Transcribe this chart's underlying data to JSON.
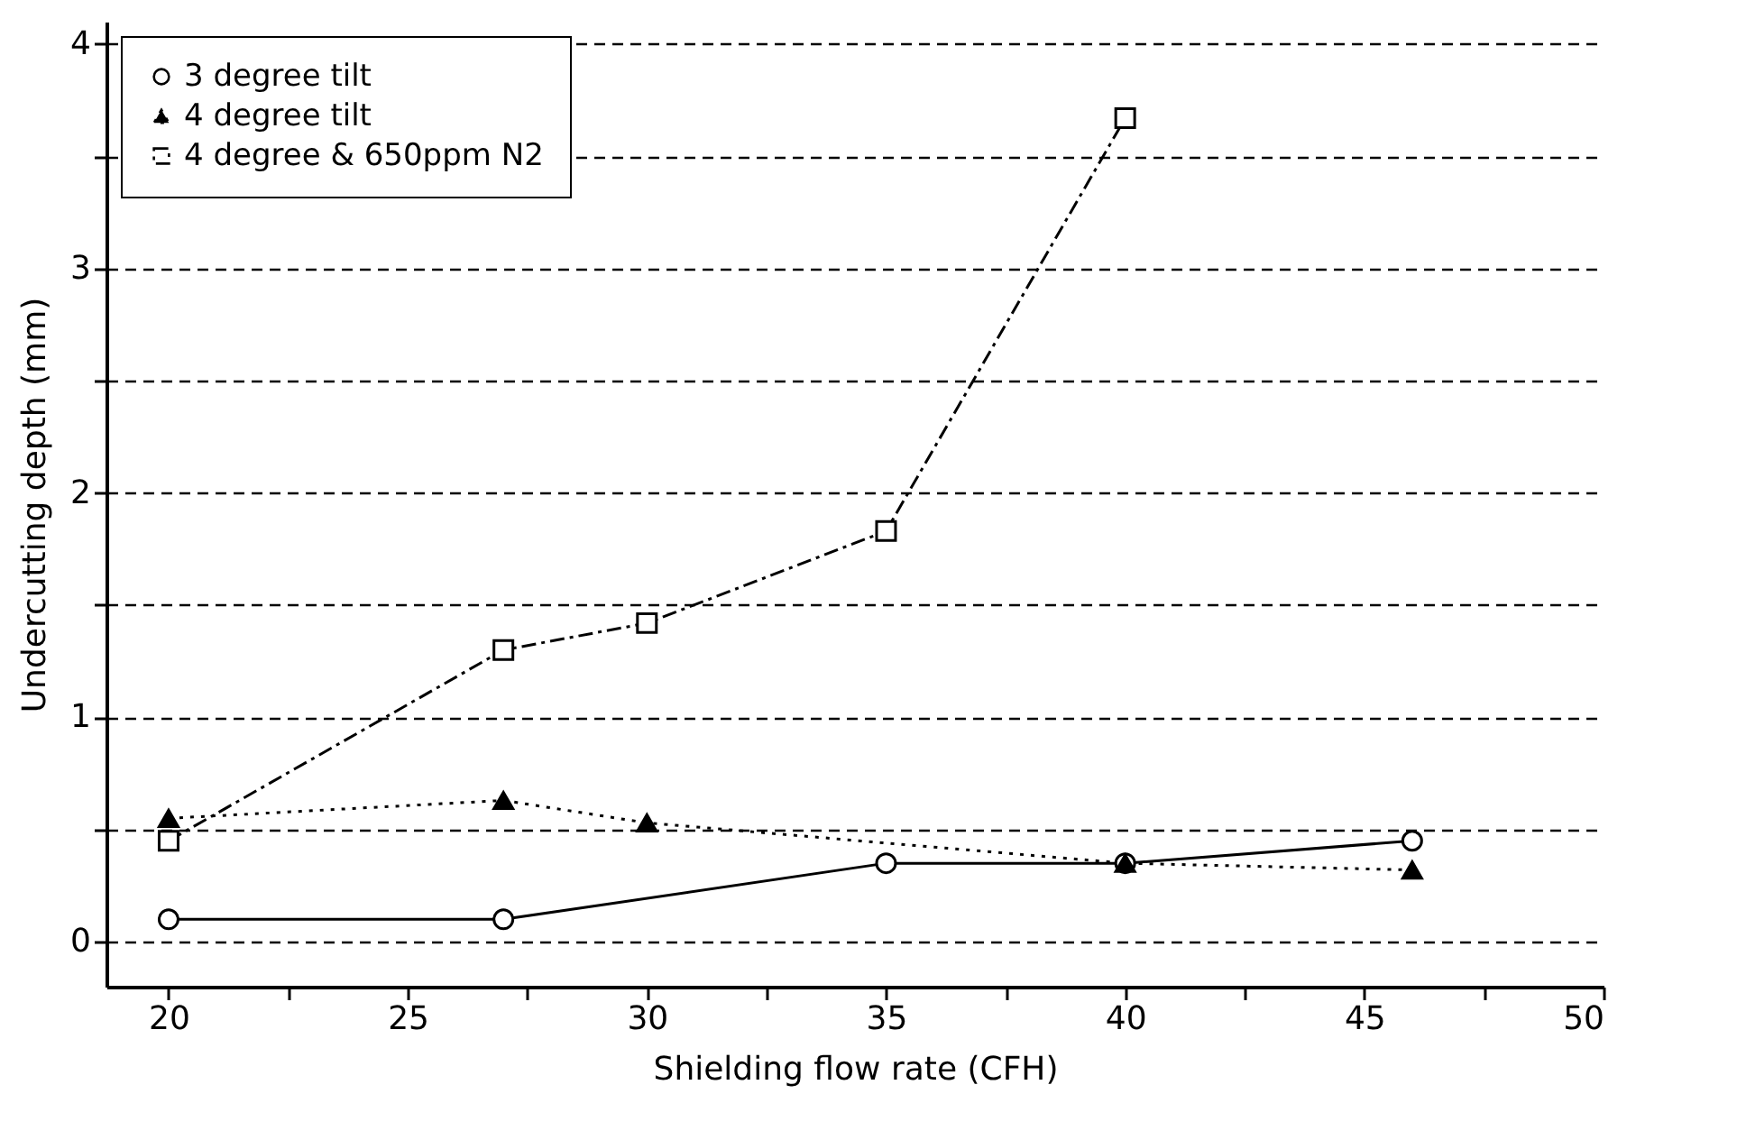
{
  "chart_data": {
    "type": "line",
    "xlabel": "Shielding flow rate (CFH)",
    "ylabel": "Undercutting depth (mm)",
    "xlim": [
      18.7,
      50
    ],
    "xticks": [
      20,
      {
        "value": 22.5,
        "label": null
      },
      25,
      {
        "value": 27.5,
        "label": null
      },
      30,
      {
        "value": 32.5,
        "label": null
      },
      35,
      {
        "value": 37.5,
        "label": null
      },
      40,
      {
        "value": 42.5,
        "label": null
      },
      45,
      {
        "value": 47.5,
        "label": null
      },
      50
    ],
    "ylim": [
      -0.2,
      4.1
    ],
    "yticks": [
      0,
      {
        "value": 0.5,
        "label": null
      },
      1,
      {
        "value": 1.5,
        "label": null
      },
      2,
      {
        "value": 2.5,
        "label": null
      },
      3,
      {
        "value": 3.5,
        "label": null
      },
      4
    ],
    "grid": "y",
    "legend": "top left",
    "series": [
      {
        "name": "3 degree tilt",
        "color": "#000000",
        "x": [
          20,
          27,
          35,
          40,
          46
        ],
        "values": [
          0.1,
          0.1,
          0.35,
          0.35,
          0.45
        ],
        "marker": "circle",
        "line_style": "solid"
      },
      {
        "name": "4 degree tilt",
        "color": "#000000",
        "x": [
          20,
          27,
          30,
          40,
          46
        ],
        "values": [
          0.55,
          0.63,
          0.53,
          0.35,
          0.32
        ],
        "marker": "triangle",
        "line_style": "dotted"
      },
      {
        "name": "4 degree & 650ppm N2",
        "color": "#000000",
        "x": [
          20,
          27,
          30,
          35,
          40
        ],
        "values": [
          0.45,
          1.3,
          1.42,
          1.83,
          3.67
        ],
        "marker": "square",
        "line_style": "dashed"
      }
    ]
  }
}
